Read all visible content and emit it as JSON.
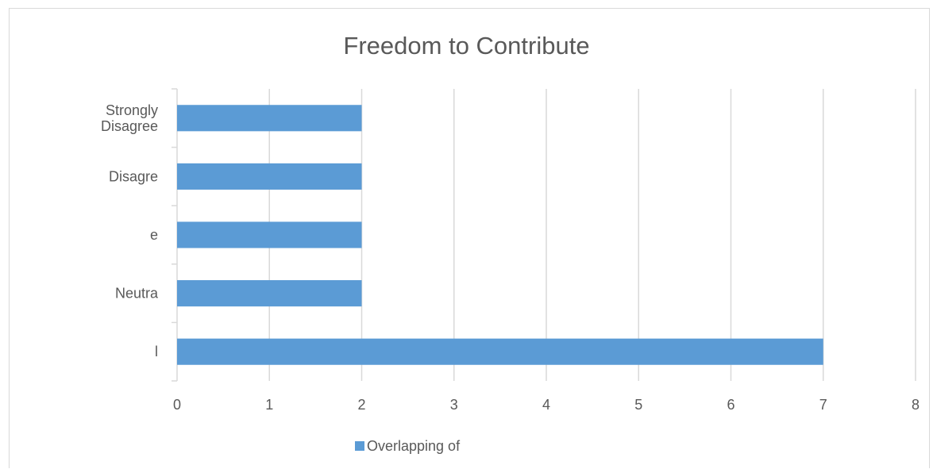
{
  "chart_data": {
    "type": "bar",
    "orientation": "horizontal",
    "title": "Freedom to Contribute",
    "categories": [
      [
        "Strongly",
        "Disagree"
      ],
      [
        "Disagre"
      ],
      [
        "e"
      ],
      [
        "Neutra"
      ],
      [
        "l"
      ]
    ],
    "series": [
      {
        "name": "Overlapping of",
        "values": [
          2,
          2,
          2,
          2,
          7
        ],
        "color": "#5b9bd5"
      }
    ],
    "xlim": [
      0,
      8
    ],
    "x_ticks": [
      0,
      1,
      2,
      3,
      4,
      5,
      6,
      7,
      8
    ],
    "grid": "vertical",
    "legend_position": "bottom",
    "xlabel": "",
    "ylabel": ""
  }
}
